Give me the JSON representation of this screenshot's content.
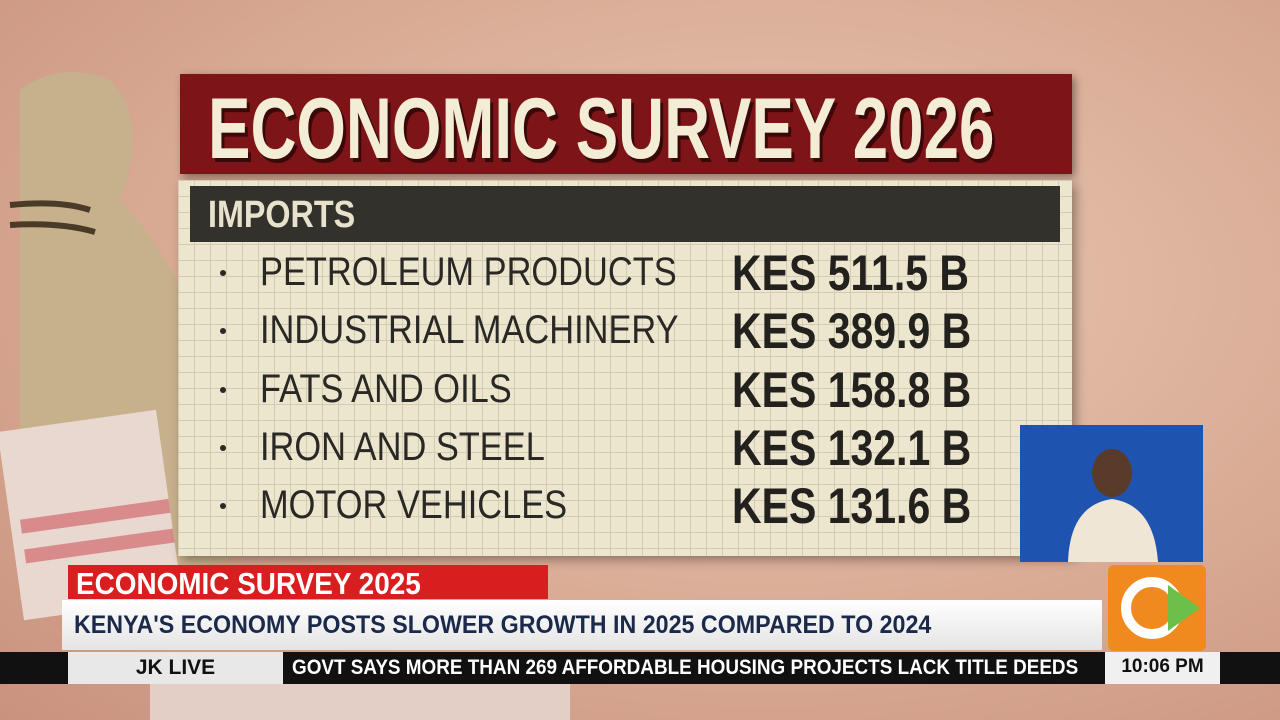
{
  "header": {
    "title": "ECONOMIC SURVEY 2026"
  },
  "section": "IMPORTS",
  "items": [
    {
      "label": "PETROLEUM PRODUCTS",
      "value": "KES 511.5 B"
    },
    {
      "label": "INDUSTRIAL MACHINERY",
      "value": "KES 389.9 B"
    },
    {
      "label": "FATS AND OILS",
      "value": "KES 158.8 B"
    },
    {
      "label": "IRON AND STEEL",
      "value": "KES 132.1 B"
    },
    {
      "label": "MOTOR VEHICLES",
      "value": "KES 131.6 B"
    }
  ],
  "lower_third": {
    "tag": "ECONOMIC SURVEY 2025",
    "headline": "KENYA'S ECONOMY POSTS SLOWER GROWTH IN 2025 COMPARED TO 2024"
  },
  "ticker": {
    "label": "JK LIVE",
    "text": "GOVT SAYS MORE THAN 269 AFFORDABLE HOUSING PROJECTS  LACK TITLE DEEDS",
    "time": "10:06 PM"
  }
}
